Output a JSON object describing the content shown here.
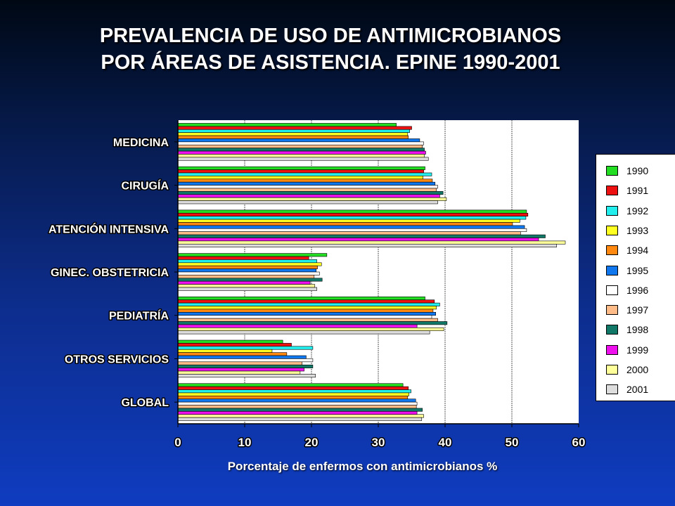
{
  "title_line1": "PREVALENCIA DE USO DE ANTIMICROBIANOS",
  "title_line2": "POR ÁREAS DE ASISTENCIA. EPINE 1990-2001",
  "chart_data": {
    "type": "bar",
    "orientation": "horizontal",
    "categories": [
      "MEDICINA",
      "CIRUGÍA",
      "ATENCIÓN INTENSIVA",
      "GINEC. OBSTETRICIA",
      "PEDIATRÍA",
      "OTROS SERVICIOS",
      "GLOBAL"
    ],
    "series": [
      {
        "name": "1990",
        "color": "#22dd22",
        "values": [
          32.7,
          37.0,
          52.2,
          22.3,
          37.0,
          15.7,
          33.7
        ]
      },
      {
        "name": "1991",
        "color": "#ee1111",
        "values": [
          35.0,
          36.8,
          52.4,
          19.6,
          38.4,
          17.0,
          34.5
        ]
      },
      {
        "name": "1992",
        "color": "#22eeee",
        "values": [
          34.7,
          38.0,
          52.1,
          20.8,
          39.2,
          20.2,
          34.9
        ]
      },
      {
        "name": "1993",
        "color": "#ffff22",
        "values": [
          34.4,
          36.7,
          51.2,
          21.5,
          38.7,
          14.1,
          34.6
        ]
      },
      {
        "name": "1994",
        "color": "#ff8811",
        "values": [
          34.5,
          38.1,
          50.1,
          20.9,
          38.2,
          16.3,
          34.4
        ]
      },
      {
        "name": "1995",
        "color": "#1177ee",
        "values": [
          36.2,
          38.5,
          51.9,
          20.7,
          38.6,
          19.2,
          35.6
        ]
      },
      {
        "name": "1996",
        "color": "#ffffff",
        "values": [
          36.8,
          38.9,
          52.2,
          21.2,
          38.0,
          20.2,
          35.8
        ]
      },
      {
        "name": "1997",
        "color": "#ffbb88",
        "values": [
          36.6,
          38.7,
          51.3,
          20.4,
          38.9,
          18.6,
          35.7
        ]
      },
      {
        "name": "1998",
        "color": "#117766",
        "values": [
          36.9,
          39.7,
          55.0,
          21.6,
          40.3,
          20.2,
          36.6
        ]
      },
      {
        "name": "1999",
        "color": "#ee11ee",
        "values": [
          37.1,
          39.2,
          54.0,
          19.8,
          35.8,
          18.9,
          35.8
        ]
      },
      {
        "name": "2000",
        "color": "#ffff99",
        "values": [
          36.9,
          40.2,
          58.0,
          20.5,
          39.8,
          18.3,
          36.8
        ]
      },
      {
        "name": "2001",
        "color": "#dddddd",
        "values": [
          37.5,
          38.9,
          56.7,
          20.8,
          37.7,
          20.6,
          36.5
        ]
      }
    ],
    "xlim": [
      0,
      60
    ],
    "xticks": [
      "0",
      "10",
      "20",
      "30",
      "40",
      "50",
      "60"
    ],
    "xlabel": "Porcentaje de enfermos con antimicrobianos %",
    "ylabel": "",
    "grid": "vertical",
    "legend": "right"
  }
}
